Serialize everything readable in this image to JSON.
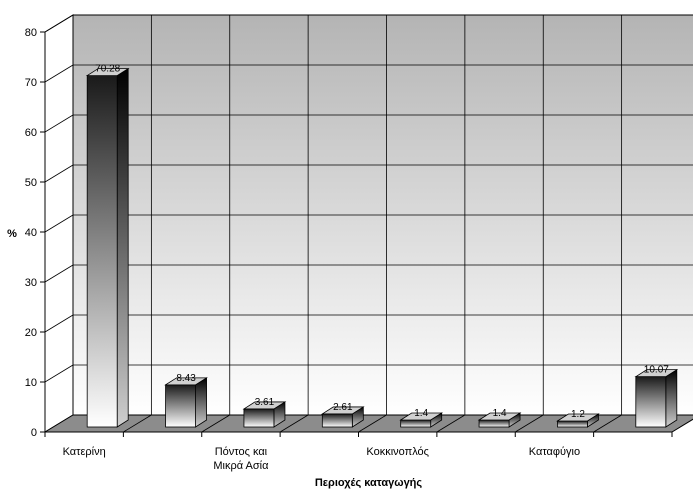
{
  "chart_data": {
    "type": "bar",
    "style": "3d",
    "categories": [
      "Κατερίνη",
      "",
      "Πόντος και Μικρά Ασία",
      "",
      "Κοκκινοπλός",
      "",
      "Καταφύγιο",
      ""
    ],
    "category_lines": [
      [
        "Κατερίνη"
      ],
      [],
      [
        "Πόντος και",
        "Μικρά Ασία"
      ],
      [],
      [
        "Κοκκινοπλός"
      ],
      [],
      [
        "Καταφύγιο"
      ],
      []
    ],
    "values": [
      70.28,
      8.43,
      3.61,
      2.61,
      1.4,
      1.4,
      1.2,
      10.07
    ],
    "data_labels": [
      "70.28",
      "8.43",
      "3.61",
      "2.61",
      "1.4",
      "1.4",
      "1.2",
      "10.07"
    ],
    "yticks": [
      "0",
      "10",
      "20",
      "30",
      "40",
      "50",
      "60",
      "70",
      "80"
    ],
    "title": "",
    "xlabel": "Περιοχές καταγωγής",
    "ylabel": "%",
    "ylim": [
      0,
      80
    ],
    "grid": true,
    "legend": "none",
    "colors": {
      "wall_top": "#b4b4b4",
      "wall_bottom": "#ffffff",
      "bar_dark": "#1a1a1a",
      "bar_light": "#ffffff",
      "grid": "#000000"
    }
  }
}
